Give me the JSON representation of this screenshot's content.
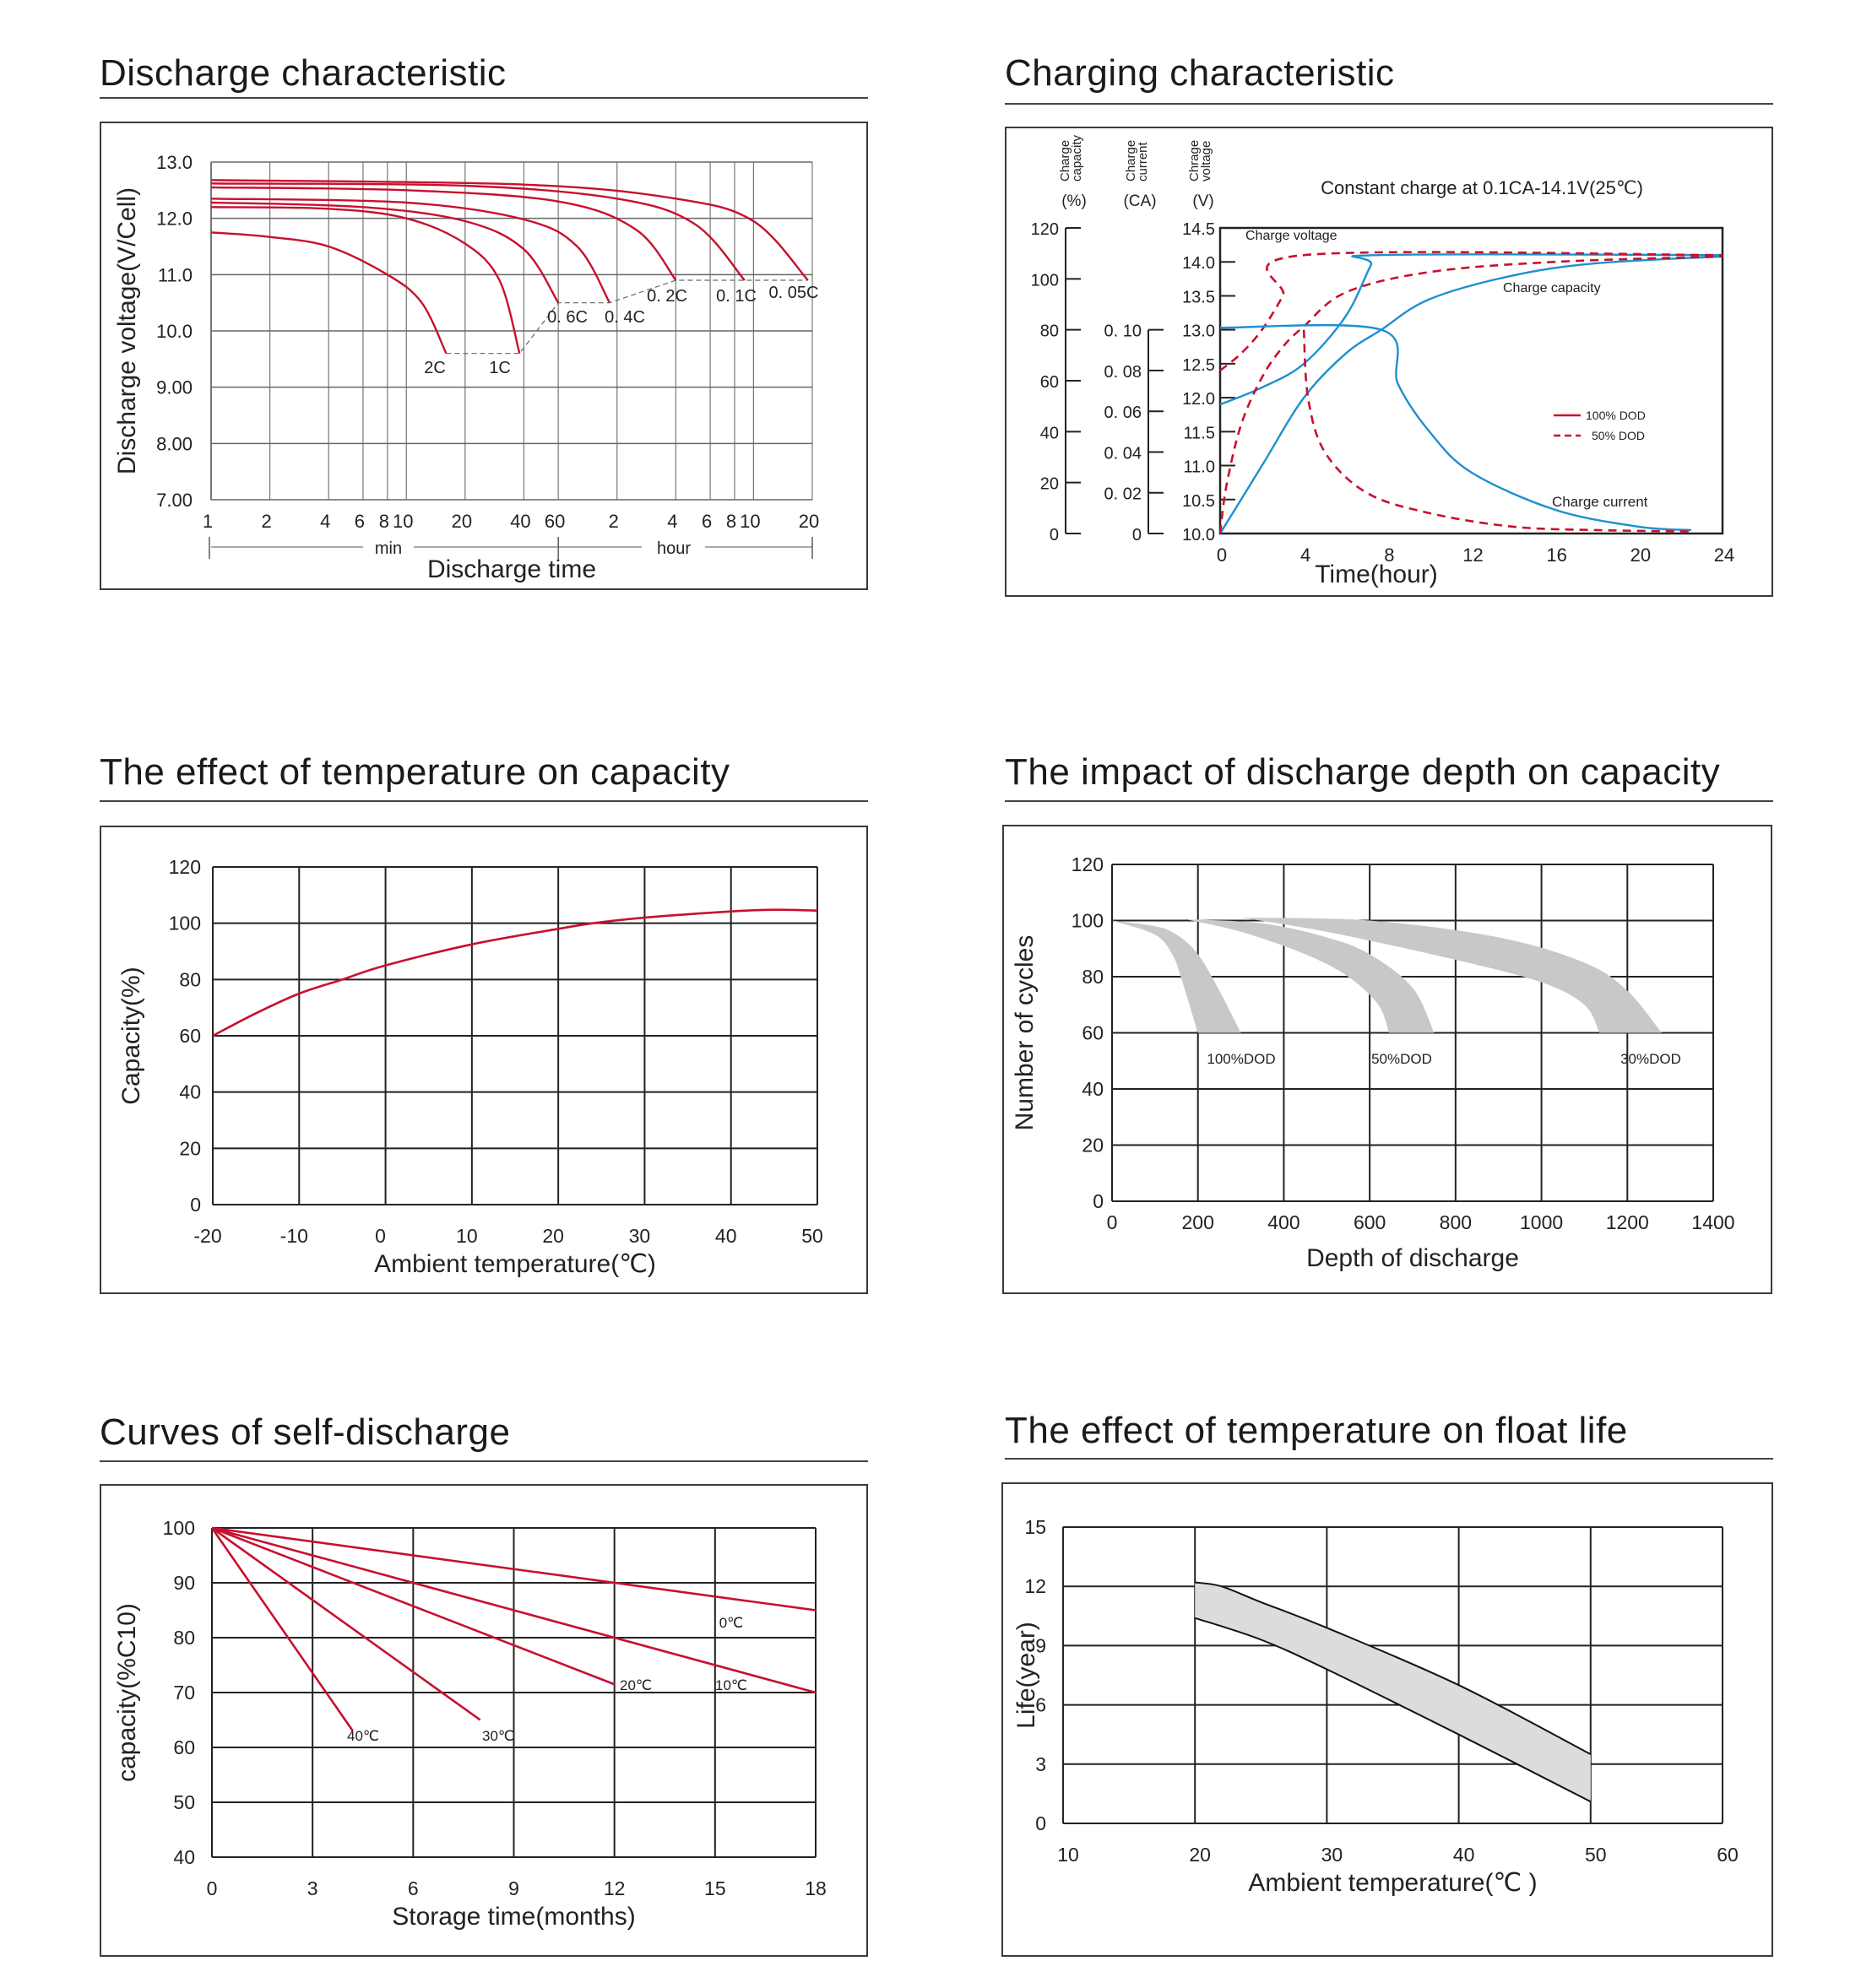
{
  "page": {
    "colors": {
      "red": "#c8102e",
      "blue": "#1e8fcf",
      "band_gray": "#c8c8c8",
      "band_light": "#dcdcdc",
      "grid": "#222222",
      "gray_grid": "#999999"
    }
  },
  "chart_data": [
    {
      "id": "discharge",
      "type": "line",
      "title": "Discharge characteristic",
      "xlabel": "Discharge time",
      "ylabel": "Discharge voltage(V/Cell)",
      "x_scale": "log",
      "x_unit_labels": [
        "min",
        "hour"
      ],
      "x_ticks_min": [
        "1",
        "2",
        "4",
        "6",
        "8",
        "10",
        "20",
        "40",
        "60"
      ],
      "x_ticks_hour": [
        "2",
        "4",
        "6",
        "8",
        "10",
        "20"
      ],
      "x_ticks_minutes_value": [
        1,
        2,
        4,
        6,
        8,
        10,
        20,
        40,
        60,
        120,
        240,
        360,
        480,
        600,
        1200
      ],
      "y_ticks": [
        "7.00",
        "8.00",
        "9.00",
        "10.0",
        "11.0",
        "12.0",
        "13.0"
      ],
      "ylim": [
        7.0,
        13.0
      ],
      "grid": true,
      "series": [
        {
          "name": "2C",
          "end_minutes": 16,
          "start_v": 11.75,
          "end_v": 9.6,
          "points": [
            [
              1,
              11.75
            ],
            [
              2,
              11.67
            ],
            [
              4,
              11.5
            ],
            [
              8,
              11.0
            ],
            [
              12,
              10.5
            ],
            [
              16,
              9.6
            ]
          ]
        },
        {
          "name": "1C",
          "end_minutes": 38,
          "start_v": 12.2,
          "end_v": 9.6,
          "points": [
            [
              1,
              12.2
            ],
            [
              4,
              12.17
            ],
            [
              10,
              12.0
            ],
            [
              20,
              11.55
            ],
            [
              30,
              10.9
            ],
            [
              38,
              9.6
            ]
          ]
        },
        {
          "name": "0.6C",
          "end_minutes": 60,
          "start_v": 12.28,
          "end_v": 10.5,
          "points": [
            [
              1,
              12.28
            ],
            [
              6,
              12.2
            ],
            [
              20,
              11.95
            ],
            [
              40,
              11.45
            ],
            [
              60,
              10.5
            ]
          ]
        },
        {
          "name": "0.4C",
          "end_minutes": 110,
          "start_v": 12.35,
          "end_v": 10.5,
          "points": [
            [
              1,
              12.35
            ],
            [
              10,
              12.28
            ],
            [
              40,
              11.98
            ],
            [
              75,
              11.5
            ],
            [
              110,
              10.5
            ]
          ]
        },
        {
          "name": "0.2C",
          "end_minutes": 240,
          "start_v": 12.55,
          "end_v": 10.9,
          "points": [
            [
              1,
              12.55
            ],
            [
              10,
              12.5
            ],
            [
              60,
              12.3
            ],
            [
              150,
              11.8
            ],
            [
              240,
              10.9
            ]
          ]
        },
        {
          "name": "0.1C",
          "end_minutes": 540,
          "start_v": 12.62,
          "end_v": 10.9,
          "points": [
            [
              1,
              12.62
            ],
            [
              20,
              12.58
            ],
            [
              120,
              12.35
            ],
            [
              300,
              11.9
            ],
            [
              540,
              10.9
            ]
          ]
        },
        {
          "name": "0.05C",
          "end_minutes": 1140,
          "start_v": 12.68,
          "end_v": 10.9,
          "points": [
            [
              1,
              12.68
            ],
            [
              40,
              12.6
            ],
            [
              240,
              12.35
            ],
            [
              600,
              11.95
            ],
            [
              1140,
              10.9
            ]
          ]
        }
      ],
      "labels": [
        "2C",
        "1C",
        "0. 6C",
        "0. 4C",
        "0. 2C",
        "0. 1C",
        "0. 05C"
      ]
    },
    {
      "id": "charging",
      "type": "line",
      "title": "Charging characteristic",
      "annotation": "Constant charge at 0.1CA-14.1V(25℃)",
      "xlabel": "Time(hour)",
      "x_ticks": [
        "0",
        "4",
        "8",
        "12",
        "16",
        "20",
        "24"
      ],
      "xlim": [
        0,
        24
      ],
      "axes": [
        {
          "label": [
            "Charge",
            "capacity",
            "(%)"
          ],
          "ticks": [
            "0",
            "20",
            "40",
            "60",
            "80",
            "100",
            "120"
          ],
          "range": [
            0,
            120
          ]
        },
        {
          "label": [
            "Charge",
            "current",
            "(CA)"
          ],
          "ticks": [
            "0",
            "0. 02",
            "0. 04",
            "0. 06",
            "0. 08",
            "0. 10"
          ],
          "range": [
            0,
            0.1
          ]
        },
        {
          "label": [
            "Chrage",
            "voltage",
            "(V)"
          ],
          "ticks": [
            "10.0",
            "10.5",
            "11.0",
            "11.5",
            "12.0",
            "12.5",
            "13.0",
            "13.5",
            "14.0",
            "14.5"
          ],
          "range": [
            10.0,
            14.5
          ]
        }
      ],
      "curve_labels": [
        "Charge voltage",
        "Charge capacity",
        "Charge current"
      ],
      "legend": [
        {
          "name": "100% DOD",
          "style": "solid"
        },
        {
          "name": "50% DOD",
          "style": "dashed"
        }
      ],
      "legend_position": "right",
      "series": [
        {
          "name": "Charge voltage 100% DOD",
          "axis": "V",
          "style": "solid",
          "color": "blue",
          "points": [
            [
              0,
              11.9
            ],
            [
              2,
              12.15
            ],
            [
              4,
              12.5
            ],
            [
              6,
              13.2
            ],
            [
              7.2,
              13.95
            ],
            [
              7.6,
              14.1
            ],
            [
              24,
              14.1
            ]
          ]
        },
        {
          "name": "Charge voltage 50% DOD",
          "axis": "V",
          "style": "dashed",
          "color": "red",
          "points": [
            [
              0,
              12.4
            ],
            [
              1,
              12.65
            ],
            [
              2,
              13.0
            ],
            [
              3,
              13.5
            ],
            [
              4,
              14.1
            ],
            [
              24,
              14.1
            ]
          ]
        },
        {
          "name": "Charge capacity 100% DOD",
          "axis": "V",
          "style": "solid",
          "color": "blue",
          "points": [
            [
              0,
              10.0
            ],
            [
              2,
              11.0
            ],
            [
              4,
              12.0
            ],
            [
              6,
              12.65
            ],
            [
              7.7,
              13.0
            ],
            [
              10,
              13.45
            ],
            [
              14,
              13.8
            ],
            [
              18,
              13.98
            ],
            [
              24,
              14.08
            ]
          ]
        },
        {
          "name": "Charge capacity 50% DOD",
          "axis": "V",
          "style": "dashed",
          "color": "red",
          "points": [
            [
              0,
              10.0
            ],
            [
              0.3,
              10.7
            ],
            [
              1,
              11.6
            ],
            [
              2,
              12.3
            ],
            [
              3,
              12.75
            ],
            [
              4,
              13.05
            ],
            [
              6,
              13.55
            ],
            [
              10,
              13.85
            ],
            [
              16,
              14.0
            ],
            [
              24,
              14.08
            ]
          ]
        },
        {
          "name": "Charge current 100% DOD",
          "axis": "V",
          "style": "solid",
          "color": "blue",
          "points": [
            [
              0,
              13.03
            ],
            [
              7.7,
              13.0
            ],
            [
              8.5,
              12.2
            ],
            [
              10,
              11.5
            ],
            [
              12,
              10.9
            ],
            [
              16,
              10.35
            ],
            [
              20,
              10.1
            ],
            [
              22.5,
              10.05
            ]
          ]
        },
        {
          "name": "Charge current 50% DOD",
          "axis": "V",
          "style": "dashed",
          "color": "red",
          "points": [
            [
              4,
              13.0
            ],
            [
              4.2,
              12.0
            ],
            [
              5,
              11.2
            ],
            [
              7,
              10.6
            ],
            [
              10,
              10.3
            ],
            [
              14,
              10.1
            ],
            [
              18,
              10.05
            ],
            [
              22.5,
              10.03
            ]
          ]
        }
      ]
    },
    {
      "id": "temp_capacity",
      "type": "line",
      "title": "The effect of temperature on capacity",
      "xlabel": "Ambient temperature(℃)",
      "ylabel": "Capacity(%)",
      "x_ticks": [
        "-20",
        "-10",
        "0",
        "10",
        "20",
        "30",
        "40",
        "50"
      ],
      "y_ticks": [
        "0",
        "20",
        "40",
        "60",
        "80",
        "100",
        "120"
      ],
      "xlim": [
        -20,
        50
      ],
      "ylim": [
        0,
        120
      ],
      "grid": true,
      "series": [
        {
          "name": "Capacity",
          "x": [
            -20,
            -15,
            -10,
            -5,
            0,
            10,
            20,
            24,
            30,
            40,
            45,
            50
          ],
          "y": [
            60,
            68,
            75,
            80,
            85,
            92.5,
            98,
            100,
            102,
            104.2,
            104.8,
            104.5
          ]
        }
      ]
    },
    {
      "id": "dod_cycles",
      "type": "area",
      "title": "The impact of discharge depth on capacity",
      "xlabel": "Depth of discharge",
      "ylabel": "Number of cycles",
      "x_ticks": [
        "0",
        "200",
        "400",
        "600",
        "800",
        "1000",
        "1200",
        "1400"
      ],
      "y_ticks": [
        "0",
        "20",
        "40",
        "60",
        "80",
        "100",
        "120"
      ],
      "xlim": [
        0,
        1400
      ],
      "ylim": [
        0,
        120
      ],
      "grid": true,
      "series": [
        {
          "name": "100%DOD",
          "upper": [
            [
              0,
              100
            ],
            [
              100,
              98
            ],
            [
              150,
              95
            ],
            [
              200,
              88
            ],
            [
              250,
              75
            ],
            [
              300,
              60
            ]
          ],
          "lower": [
            [
              0,
              100
            ],
            [
              100,
              95
            ],
            [
              140,
              88
            ],
            [
              160,
              80
            ],
            [
              200,
              60
            ]
          ]
        },
        {
          "name": "50%DOD",
          "upper": [
            [
              170,
              100.5
            ],
            [
              350,
              99
            ],
            [
              500,
              94
            ],
            [
              600,
              88
            ],
            [
              700,
              76
            ],
            [
              750,
              60
            ]
          ],
          "lower": [
            [
              170,
              100.5
            ],
            [
              300,
              96
            ],
            [
              450,
              88
            ],
            [
              550,
              80
            ],
            [
              620,
              70
            ],
            [
              645,
              60
            ]
          ]
        },
        {
          "name": "30%DOD",
          "upper": [
            [
              300,
              101
            ],
            [
              600,
              100
            ],
            [
              900,
              94
            ],
            [
              1100,
              85
            ],
            [
              1200,
              75
            ],
            [
              1280,
              60
            ]
          ],
          "lower": [
            [
              300,
              101
            ],
            [
              500,
              96
            ],
            [
              800,
              86
            ],
            [
              1000,
              78
            ],
            [
              1100,
              70
            ],
            [
              1135,
              60
            ]
          ]
        }
      ],
      "labels": [
        "100%DOD",
        "50%DOD",
        "30%DOD"
      ]
    },
    {
      "id": "self_discharge",
      "type": "line",
      "title": "Curves of self-discharge",
      "xlabel": "Storage time(months)",
      "ylabel": "capacity(%C10)",
      "x_ticks": [
        "0",
        "3",
        "6",
        "9",
        "12",
        "15",
        "18"
      ],
      "y_ticks": [
        "40",
        "50",
        "60",
        "70",
        "80",
        "90",
        "100"
      ],
      "xlim": [
        0,
        18
      ],
      "ylim": [
        40,
        100
      ],
      "grid": true,
      "series": [
        {
          "name": "0℃",
          "x": [
            0,
            18
          ],
          "y": [
            100,
            85
          ]
        },
        {
          "name": "10℃",
          "x": [
            0,
            18
          ],
          "y": [
            100,
            70
          ]
        },
        {
          "name": "20℃",
          "x": [
            0,
            12
          ],
          "y": [
            100,
            71.5
          ]
        },
        {
          "name": "30℃",
          "x": [
            0,
            8
          ],
          "y": [
            100,
            65
          ]
        },
        {
          "name": "40℃",
          "x": [
            0,
            4.2
          ],
          "y": [
            100,
            63
          ]
        }
      ],
      "labels": [
        "0℃",
        "10℃",
        "20℃",
        "30℃",
        "40℃"
      ]
    },
    {
      "id": "float_life",
      "type": "area",
      "title": "The effect of temperature on float  life",
      "xlabel": "Ambient temperature(℃ )",
      "ylabel": "Life(year)",
      "x_ticks": [
        "10",
        "20",
        "30",
        "40",
        "50",
        "60"
      ],
      "y_ticks": [
        "0",
        "3",
        "6",
        "9",
        "12",
        "15"
      ],
      "xlim": [
        10,
        60
      ],
      "ylim": [
        0,
        15
      ],
      "grid": true,
      "series": [
        {
          "name": "Float life band",
          "upper": [
            [
              20,
              12.2
            ],
            [
              22,
              12.0
            ],
            [
              25,
              11.2
            ],
            [
              30,
              9.9
            ],
            [
              40,
              7.0
            ],
            [
              50,
              3.5
            ]
          ],
          "lower": [
            [
              20,
              10.4
            ],
            [
              25,
              9.3
            ],
            [
              30,
              7.8
            ],
            [
              40,
              4.5
            ],
            [
              50,
              1.1
            ]
          ]
        }
      ]
    }
  ]
}
